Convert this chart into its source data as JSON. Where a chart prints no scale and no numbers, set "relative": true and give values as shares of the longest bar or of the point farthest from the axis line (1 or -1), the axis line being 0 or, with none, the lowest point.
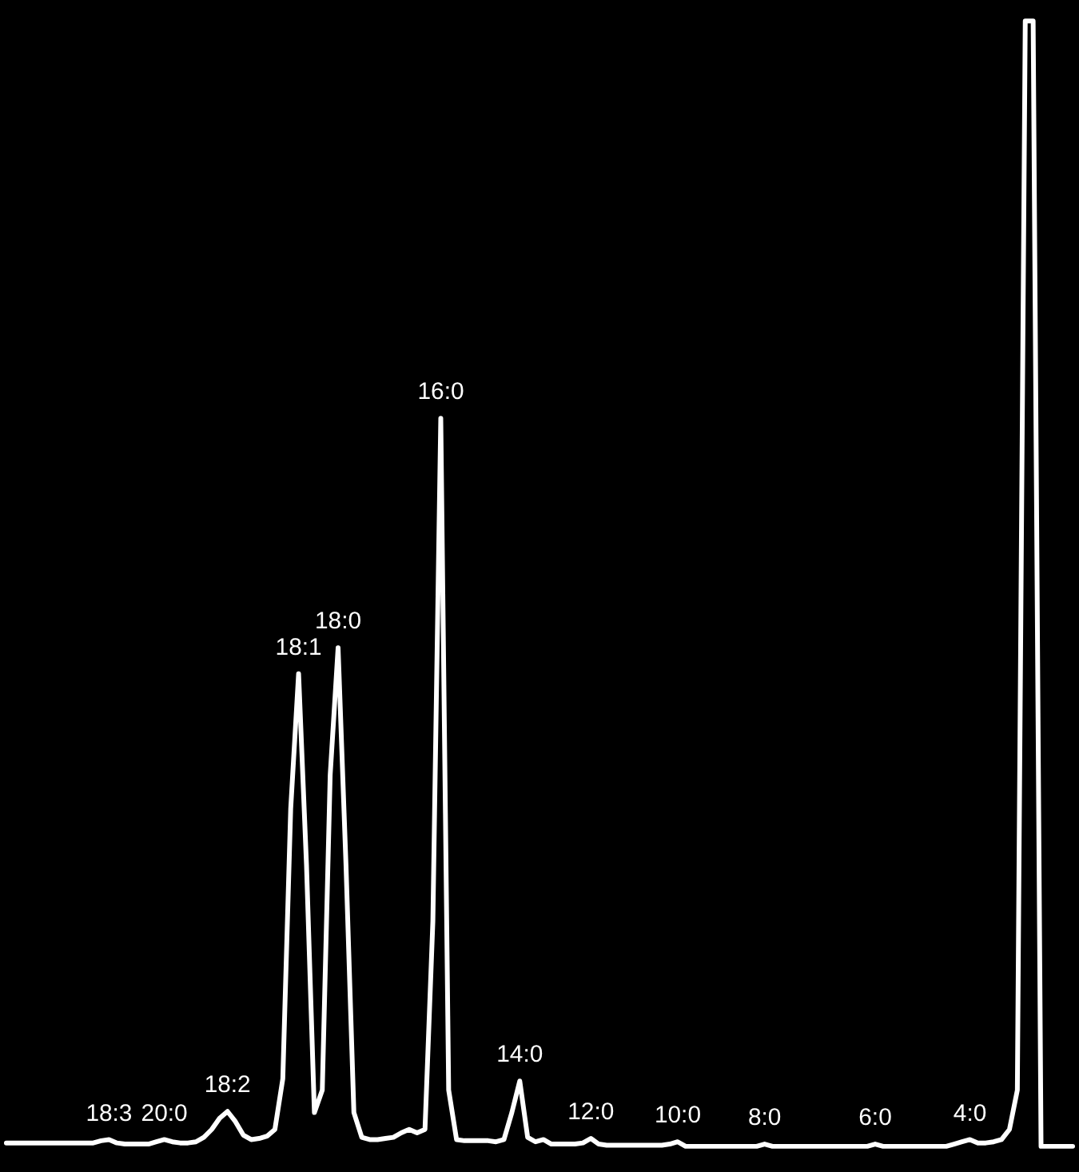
{
  "chart_data": {
    "type": "line",
    "relative": true,
    "categories": [
      null,
      null,
      null,
      null,
      null,
      null,
      null,
      null,
      null,
      null,
      null,
      null,
      null,
      "18:3",
      null,
      null,
      null,
      null,
      null,
      null,
      "20:0",
      null,
      null,
      null,
      null,
      null,
      null,
      null,
      "18:2",
      null,
      null,
      null,
      null,
      null,
      null,
      null,
      null,
      "18:1",
      null,
      null,
      null,
      null,
      "18:0",
      null,
      null,
      null,
      null,
      null,
      null,
      null,
      null,
      null,
      null,
      null,
      null,
      "16:0",
      null,
      null,
      null,
      null,
      null,
      null,
      null,
      null,
      null,
      "14:0",
      null,
      null,
      null,
      null,
      null,
      null,
      null,
      null,
      "12:0",
      null,
      null,
      null,
      null,
      null,
      null,
      null,
      null,
      null,
      null,
      "10:0",
      null,
      null,
      null,
      null,
      null,
      null,
      null,
      null,
      null,
      null,
      "8:0",
      null,
      null,
      null,
      null,
      null,
      null,
      null,
      null,
      null,
      null,
      null,
      null,
      null,
      "6:0",
      null,
      null,
      null,
      null,
      null,
      null,
      null,
      null,
      null,
      null,
      null,
      "4:0",
      null,
      null,
      null,
      null,
      null,
      null,
      null,
      null,
      null,
      null,
      null,
      null,
      null
    ],
    "series": [
      {
        "color": "#ffffff",
        "values": [
          0.003,
          0.003,
          0.003,
          0.003,
          0.003,
          0.003,
          0.003,
          0.003,
          0.003,
          0.003,
          0.003,
          0.003,
          0.005,
          0.006,
          0.003,
          0.002,
          0.002,
          0.002,
          0.002,
          0.004,
          0.006,
          0.004,
          0.003,
          0.003,
          0.004,
          0.008,
          0.015,
          0.025,
          0.031,
          0.022,
          0.01,
          0.006,
          0.007,
          0.009,
          0.015,
          0.06,
          0.3,
          0.42,
          0.25,
          0.03,
          0.05,
          0.33,
          0.443,
          0.25,
          0.03,
          0.008,
          0.006,
          0.006,
          0.007,
          0.008,
          0.012,
          0.015,
          0.012,
          0.015,
          0.2,
          0.647,
          0.05,
          0.006,
          0.005,
          0.005,
          0.005,
          0.005,
          0.004,
          0.006,
          0.03,
          0.058,
          0.008,
          0.004,
          0.006,
          0.002,
          0.002,
          0.002,
          0.002,
          0.003,
          0.007,
          0.002,
          0.001,
          0.001,
          0.001,
          0.001,
          0.001,
          0.001,
          0.001,
          0.001,
          0.002,
          0.004,
          0.0,
          0.0,
          0.0,
          0.0,
          0.0,
          0.0,
          0.0,
          0.0,
          0.0,
          0.0,
          0.002,
          0.0,
          0.0,
          0.0,
          0.0,
          0.0,
          0.0,
          0.0,
          0.0,
          0.0,
          0.0,
          0.0,
          0.0,
          0.0,
          0.002,
          0.0,
          0.0,
          0.0,
          0.0,
          0.0,
          0.0,
          0.0,
          0.0,
          0.0,
          0.002,
          0.004,
          0.006,
          0.003,
          0.003,
          0.004,
          0.006,
          0.015,
          0.05,
          1.0,
          1.0,
          0.0,
          0.0,
          0.0,
          0.0,
          0.0
        ]
      }
    ]
  }
}
